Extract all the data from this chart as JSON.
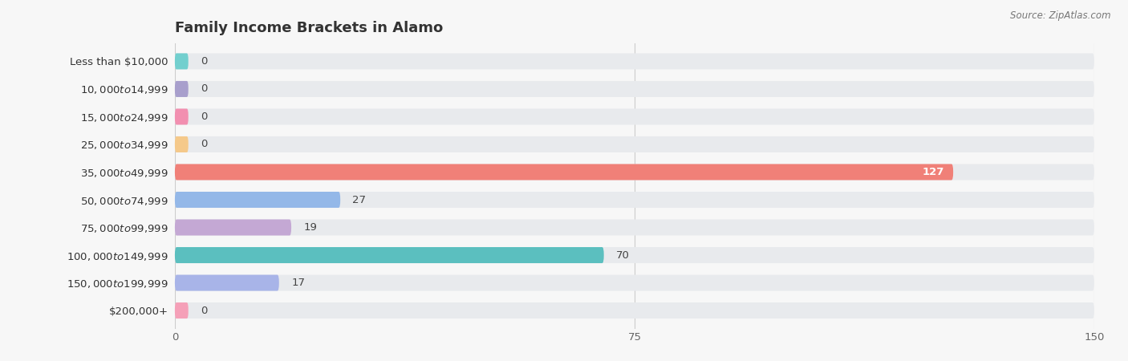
{
  "title": "Family Income Brackets in Alamo",
  "source": "Source: ZipAtlas.com",
  "categories": [
    "Less than $10,000",
    "$10,000 to $14,999",
    "$15,000 to $24,999",
    "$25,000 to $34,999",
    "$35,000 to $49,999",
    "$50,000 to $74,999",
    "$75,000 to $99,999",
    "$100,000 to $149,999",
    "$150,000 to $199,999",
    "$200,000+"
  ],
  "values": [
    0,
    0,
    0,
    0,
    127,
    27,
    19,
    70,
    17,
    0
  ],
  "bar_colors": [
    "#72CFCE",
    "#A89FCC",
    "#F28FB0",
    "#F5C98A",
    "#F08078",
    "#94B8E8",
    "#C4A8D4",
    "#5BBFBF",
    "#A8B4E8",
    "#F5A0B8"
  ],
  "bar_bg_color": "#e8eaed",
  "xlim": [
    0,
    150
  ],
  "xticks": [
    0,
    75,
    150
  ],
  "title_fontsize": 13,
  "label_fontsize": 9.5,
  "value_fontsize": 9.5,
  "bg_color": "#f7f7f7"
}
